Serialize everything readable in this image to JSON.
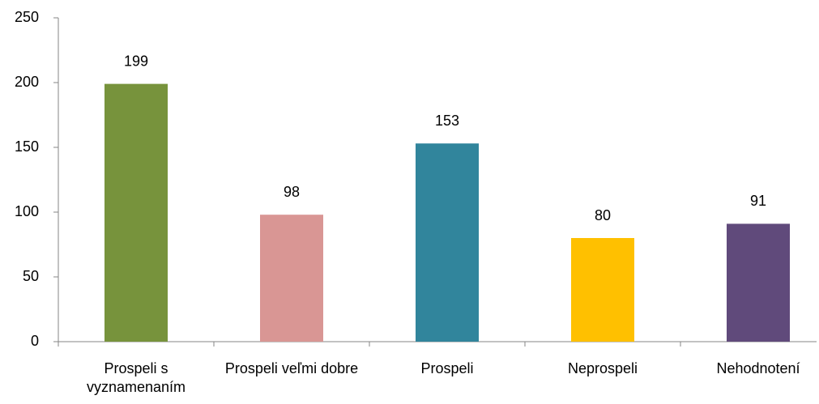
{
  "chart_data": {
    "type": "bar",
    "categories": [
      "Prospeli s vyznamenaním",
      "Prospeli veľmi dobre",
      "Prospeli",
      "Neprospeli",
      "Nehodnotení"
    ],
    "values": [
      199,
      98,
      153,
      80,
      91
    ],
    "colors": [
      "#77933c",
      "#d99694",
      "#31859c",
      "#ffc000",
      "#604a7b"
    ],
    "ylim": [
      0,
      250
    ],
    "yticks": [
      0,
      50,
      100,
      150,
      200,
      250
    ],
    "grid": false
  }
}
